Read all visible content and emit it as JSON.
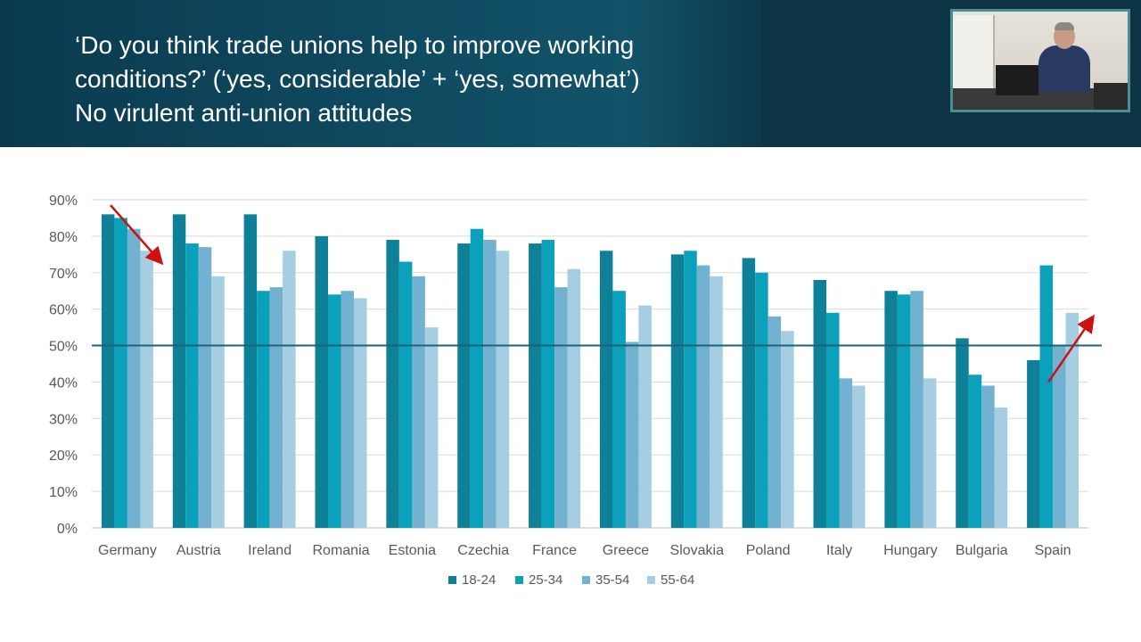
{
  "slide": {
    "title_lines": [
      "‘Do you think trade unions help to improve working",
      "conditions?’ (‘yes, considerable’ + ‘yes, somewhat’)",
      "No virulent anti-union attitudes"
    ]
  },
  "chart_data": {
    "type": "bar",
    "title": "",
    "xlabel": "",
    "ylabel": "",
    "ylim": [
      0,
      90
    ],
    "yticks": [
      "0%",
      "10%",
      "20%",
      "30%",
      "40%",
      "50%",
      "60%",
      "70%",
      "80%",
      "90%"
    ],
    "grid": true,
    "legend_position": "bottom",
    "reference_line": 50,
    "categories": [
      "Germany",
      "Austria",
      "Ireland",
      "Romania",
      "Estonia",
      "Czechia",
      "France",
      "Greece",
      "Slovakia",
      "Poland",
      "Italy",
      "Hungary",
      "Bulgaria",
      "Spain"
    ],
    "series": [
      {
        "name": "18-24",
        "color": "#0e8199",
        "values": [
          86,
          86,
          86,
          80,
          79,
          78,
          78,
          76,
          75,
          74,
          68,
          65,
          52,
          46
        ]
      },
      {
        "name": "25-34",
        "color": "#0ba1bb",
        "values": [
          85,
          78,
          65,
          64,
          73,
          82,
          79,
          65,
          76,
          70,
          59,
          64,
          42,
          72
        ]
      },
      {
        "name": "35-54",
        "color": "#72b1cf",
        "values": [
          82,
          77,
          66,
          65,
          69,
          79,
          66,
          51,
          72,
          58,
          41,
          65,
          39,
          50
        ]
      },
      {
        "name": "55-64",
        "color": "#a6cee2",
        "values": [
          76,
          69,
          76,
          63,
          55,
          76,
          71,
          61,
          69,
          54,
          39,
          41,
          33,
          59
        ]
      }
    ],
    "annotations": [
      {
        "type": "arrow",
        "color": "#cc1111",
        "from": {
          "category": "Germany",
          "value": 88.5
        },
        "to": {
          "category": "Germany",
          "value": 73
        },
        "direction": "down"
      },
      {
        "type": "arrow",
        "color": "#cc1111",
        "from": {
          "category": "Spain",
          "value": 40
        },
        "to": {
          "category": "Spain",
          "value": 57.5
        },
        "direction": "up"
      }
    ]
  }
}
